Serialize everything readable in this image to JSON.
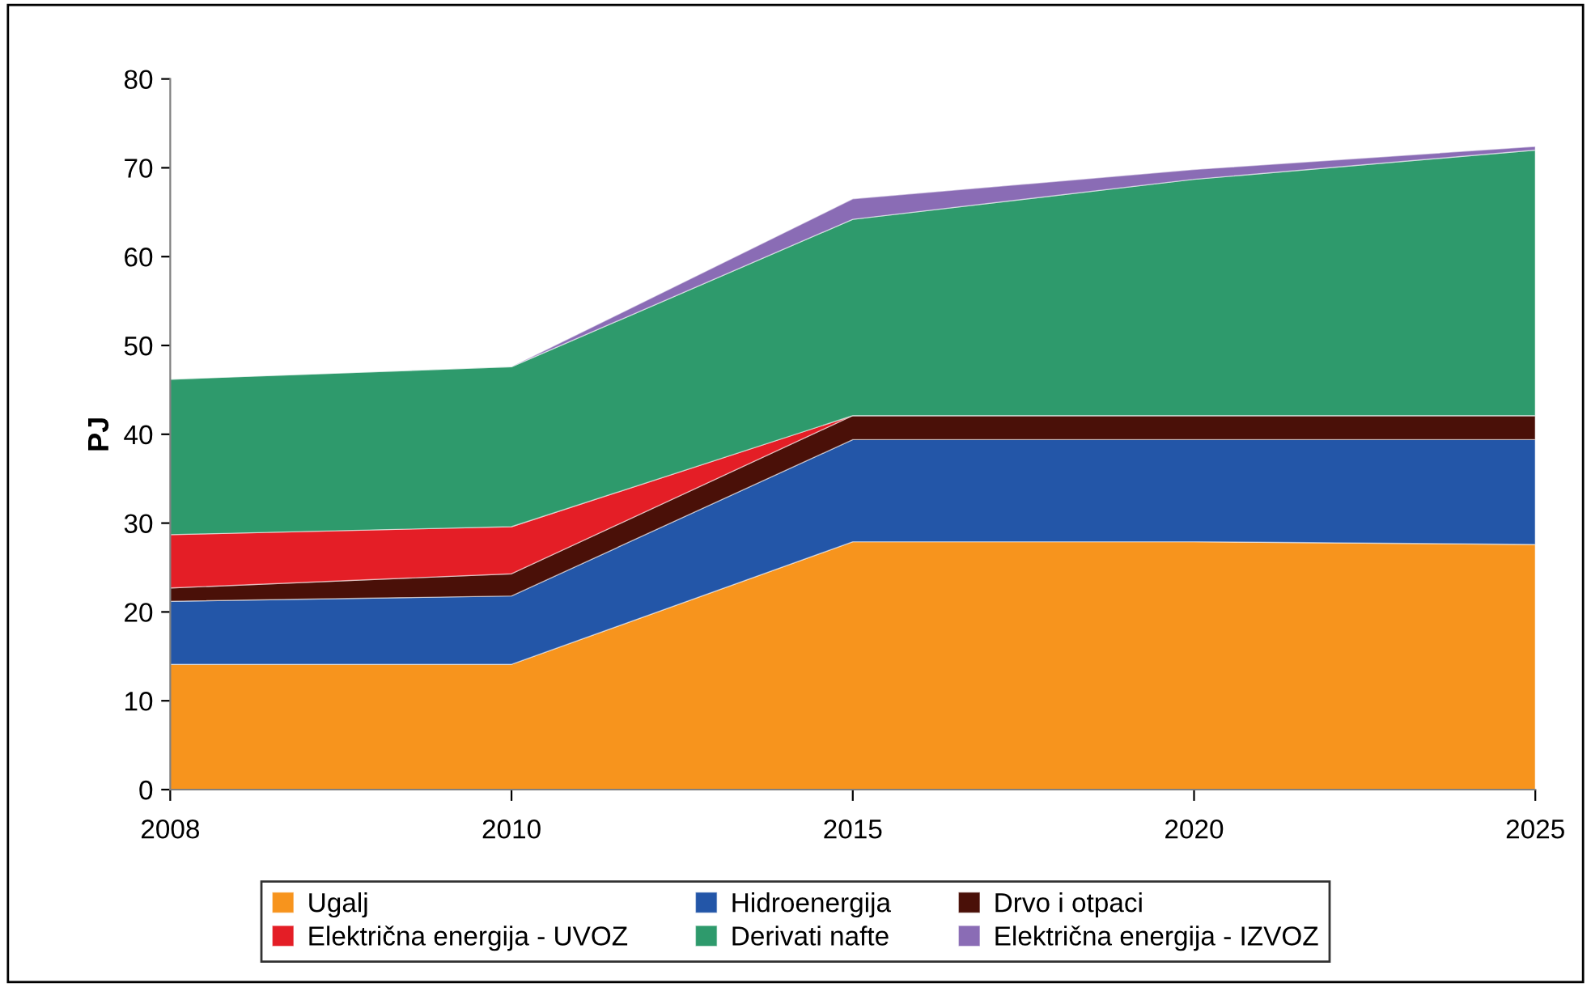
{
  "chart_data": {
    "type": "area",
    "stacked": true,
    "ylabel": "PJ",
    "categories": [
      "2008",
      "2010",
      "2015",
      "2020",
      "2025"
    ],
    "ylim": [
      0,
      80
    ],
    "yticks": [
      0,
      10,
      20,
      30,
      40,
      50,
      60,
      70,
      80
    ],
    "grid": false,
    "legend": "bottom",
    "series": [
      {
        "name": "Ugalj",
        "color": "#f7941d",
        "values": [
          14.1,
          14.1,
          27.9,
          27.9,
          27.6
        ]
      },
      {
        "name": "Hidroenergija",
        "color": "#2356a8",
        "values": [
          7.1,
          7.7,
          11.5,
          11.5,
          11.8
        ]
      },
      {
        "name": "Drvo i otpaci",
        "color": "#4a1008",
        "values": [
          1.5,
          2.5,
          2.7,
          2.7,
          2.7
        ]
      },
      {
        "name": "Električna energija - UVOZ",
        "color": "#e41e26",
        "values": [
          6,
          5.3,
          0,
          0,
          0
        ]
      },
      {
        "name": "Derivati nafte",
        "color": "#2e9a6c",
        "values": [
          17.5,
          18,
          22.1,
          26.6,
          29.9
        ]
      },
      {
        "name": "Električna energija - IZVOZ",
        "color": "#8a6cb5",
        "values": [
          0,
          0,
          2.3,
          1.1,
          0.4
        ]
      }
    ]
  }
}
